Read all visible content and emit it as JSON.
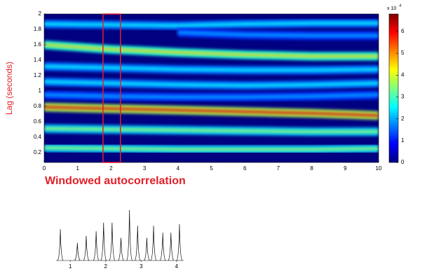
{
  "chart_data": [
    {
      "type": "heatmap",
      "title": "Windowed autocorrelation",
      "y_label": "Lag (seconds)",
      "x": [
        0,
        2,
        4,
        6,
        8,
        10
      ],
      "xlim": [
        0,
        10
      ],
      "xticks": [
        0,
        1,
        2,
        3,
        4,
        5,
        6,
        7,
        8,
        9,
        10
      ],
      "ylim": [
        0.07,
        2
      ],
      "yticks": [
        0.2,
        0.4,
        0.6,
        0.8,
        1,
        1.2,
        1.4,
        1.6,
        1.8,
        2
      ],
      "clim": [
        0,
        6.8
      ],
      "cticks": [
        0,
        1,
        2,
        3,
        4,
        5,
        6
      ],
      "colorbar_scale": "x 10",
      "colorbar_exponent": "-4",
      "window": [
        1.76,
        2.28
      ],
      "window_color": "#e0202a",
      "ridges": [
        {
          "lags": [
            1.87,
            1.86,
            1.85,
            1.87,
            1.88,
            1.88
          ],
          "intensity": 2.6
        },
        {
          "lags": [
            null,
            null,
            1.76,
            1.73,
            1.72,
            1.72
          ],
          "intensity": 2
        },
        {
          "lags": [
            1.6,
            1.54,
            1.5,
            1.47,
            1.45,
            1.45
          ],
          "intensity": 4.6
        },
        {
          "lags": [
            1.32,
            1.3,
            1.28,
            1.27,
            1.27,
            1.28
          ],
          "intensity": 2.6
        },
        {
          "lags": [
            1.12,
            1.1,
            1.08,
            1.07,
            1.08,
            1.1
          ],
          "intensity": 2.6
        },
        {
          "lags": [
            0.95,
            0.93,
            0.92,
            0.92,
            0.93,
            0.95
          ],
          "intensity": 2
        },
        {
          "lags": [
            0.79,
            0.77,
            0.75,
            0.73,
            0.71,
            0.68
          ],
          "intensity": 6.2
        },
        {
          "lags": [
            0.51,
            0.5,
            0.49,
            0.48,
            0.47,
            0.47
          ],
          "intensity": 3.6
        },
        {
          "lags": [
            0.26,
            0.25,
            0.24,
            0.24,
            0.24,
            0.25
          ],
          "intensity": 3.6
        }
      ]
    },
    {
      "type": "peaks",
      "xlim": [
        0.6,
        4.2
      ],
      "xticks": [
        1,
        2,
        3,
        4
      ],
      "x": [
        0.72,
        1.2,
        1.45,
        1.73,
        1.94,
        2.18,
        2.43,
        2.67,
        2.9,
        3.16,
        3.35,
        3.61,
        3.84,
        4.08
      ],
      "values": [
        0.62,
        0.35,
        0.49,
        0.58,
        0.75,
        0.75,
        0.45,
        1,
        0.69,
        0.45,
        0.69,
        0.55,
        0.55,
        0.72
      ],
      "ylim": [
        0,
        1
      ],
      "color": "#000000"
    }
  ]
}
